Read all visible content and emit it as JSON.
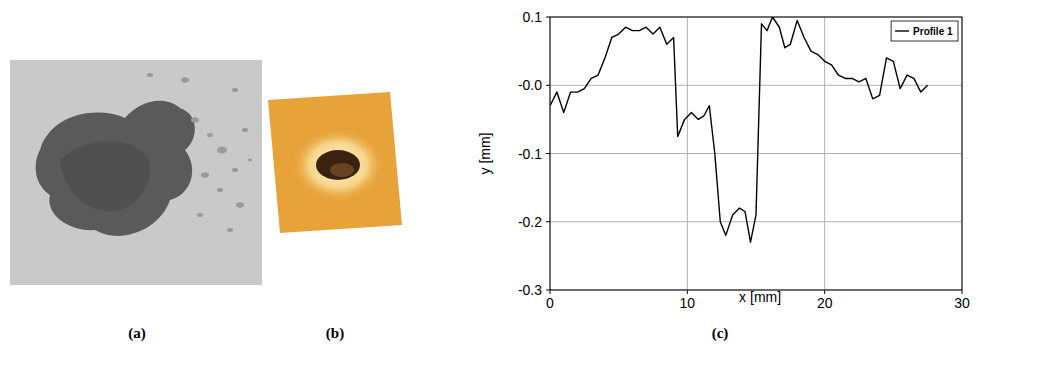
{
  "panel_labels": [
    "(a)",
    "(b)",
    "(c)"
  ],
  "chart_data": {
    "type": "line",
    "x_label": "x [mm]",
    "y_label": "y [mm]",
    "x": [
      0,
      0.5,
      1,
      1.5,
      2,
      2.5,
      3,
      3.5,
      4,
      4.5,
      5,
      5.5,
      6,
      6.5,
      7,
      7.5,
      8,
      8.5,
      9,
      9.3,
      9.8,
      10.3,
      10.8,
      11.2,
      11.6,
      12,
      12.4,
      12.8,
      13.3,
      13.8,
      14.2,
      14.6,
      15,
      15.4,
      15.8,
      16.2,
      16.7,
      17.1,
      17.5,
      18,
      18.5,
      19,
      19.5,
      20,
      20.5,
      21,
      21.5,
      22,
      22.5,
      23,
      23.5,
      24,
      24.5,
      25,
      25.5,
      26,
      26.5,
      27,
      27.5
    ],
    "series": [
      {
        "name": "Profile 1",
        "color": "#000000",
        "values": [
          -0.03,
          -0.01,
          -0.04,
          -0.01,
          -0.01,
          -0.005,
          0.01,
          0.015,
          0.04,
          0.07,
          0.075,
          0.085,
          0.08,
          0.08,
          0.085,
          0.075,
          0.085,
          0.06,
          0.07,
          -0.075,
          -0.05,
          -0.04,
          -0.05,
          -0.045,
          -0.03,
          -0.1,
          -0.2,
          -0.22,
          -0.19,
          -0.18,
          -0.185,
          -0.23,
          -0.19,
          0.09,
          0.08,
          0.1,
          0.085,
          0.055,
          0.06,
          0.095,
          0.07,
          0.05,
          0.045,
          0.035,
          0.03,
          0.015,
          0.01,
          0.01,
          0.005,
          0.01,
          -0.02,
          -0.015,
          0.04,
          0.035,
          -0.005,
          0.015,
          0.01,
          -0.01,
          0.0
        ]
      }
    ],
    "xlim": [
      0,
      30
    ],
    "ylim": [
      -0.3,
      0.1
    ],
    "xticks": [
      0,
      10,
      20,
      30
    ],
    "yticks": [
      -0.3,
      -0.2,
      -0.1,
      {
        "value": 0,
        "label": "-0.0"
      },
      0.1
    ],
    "grid": true,
    "legend": "upper right"
  }
}
